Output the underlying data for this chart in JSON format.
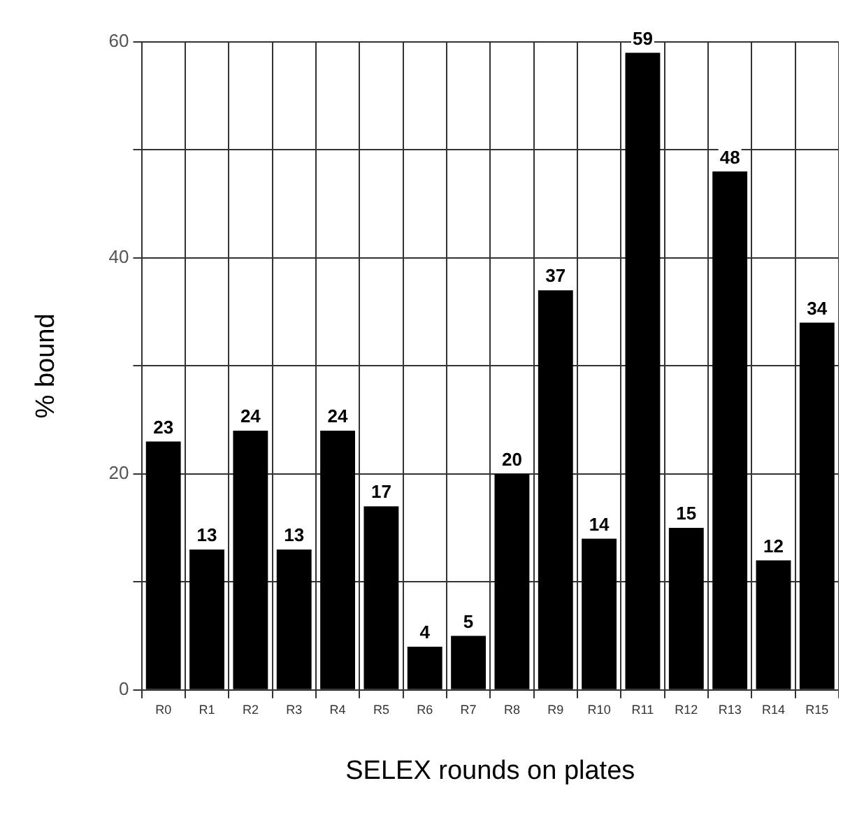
{
  "chart_data": {
    "type": "bar",
    "xlabel": "SELEX rounds on plates",
    "ylabel": "% bound",
    "categories": [
      "R0",
      "R1",
      "R2",
      "R3",
      "R4",
      "R5",
      "R6",
      "R7",
      "R8",
      "R9",
      "R10",
      "R11",
      "R12",
      "R13",
      "R14",
      "R15"
    ],
    "values": [
      23,
      13,
      24,
      13,
      24,
      17,
      4,
      5,
      20,
      37,
      14,
      59,
      15,
      48,
      12,
      34
    ],
    "color": "#000000",
    "ylim": [
      0,
      60
    ],
    "yticks": [
      0,
      {
        "value": 10,
        "label": null
      },
      20,
      {
        "value": 30,
        "label": null
      },
      40,
      {
        "value": 50,
        "label": null
      },
      60
    ],
    "grid": true,
    "data_labels": true,
    "legend": false
  }
}
